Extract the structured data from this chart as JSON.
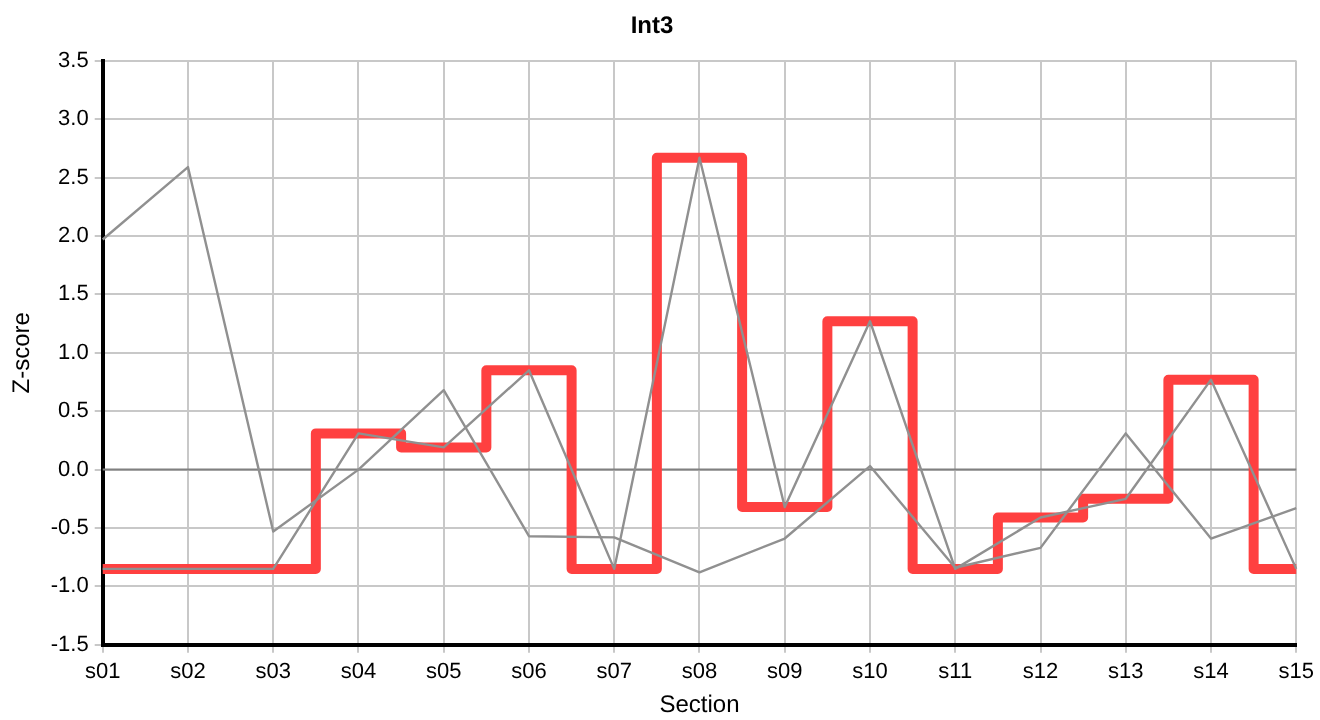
{
  "chart_data": {
    "type": "line",
    "title": "Int3",
    "xlabel": "Section",
    "ylabel": "Z-score",
    "categories": [
      "s01",
      "s02",
      "s03",
      "s04",
      "s05",
      "s06",
      "s07",
      "s08",
      "s09",
      "s10",
      "s11",
      "s12",
      "s13",
      "s14",
      "s15"
    ],
    "series": [
      {
        "type": "step",
        "color": "#ff4040",
        "values": [
          -0.85,
          -0.85,
          -0.85,
          0.31,
          0.19,
          0.85,
          -0.85,
          2.67,
          -0.32,
          1.27,
          -0.85,
          -0.41,
          -0.25,
          0.77,
          -0.85
        ]
      },
      {
        "color": "#909090",
        "values": [
          1.97,
          2.59,
          -0.53,
          0,
          0.68,
          -0.57,
          -0.58,
          -0.88,
          -0.59,
          0.03,
          -0.84,
          -0.67,
          0.31,
          -0.59,
          -0.33
        ]
      },
      {
        "color": "#909090",
        "values": [
          -0.85,
          -0.85,
          -0.85,
          0.31,
          0.19,
          0.85,
          -0.85,
          2.67,
          -0.32,
          1.27,
          -0.85,
          -0.41,
          -0.25,
          0.77,
          -0.85
        ]
      }
    ],
    "ylim": [
      -1.5,
      3.5
    ],
    "yticks": [
      {
        "value": -1.5,
        "label": "-1.5"
      },
      {
        "value": -1,
        "label": "-1.0"
      },
      {
        "value": -0.5,
        "label": "-0.5"
      },
      {
        "value": 0,
        "label": "0.0"
      },
      {
        "value": 0.5,
        "label": "0.5"
      },
      {
        "value": 1,
        "label": "1.0"
      },
      {
        "value": 1.5,
        "label": "1.5"
      },
      {
        "value": 2,
        "label": "2.0"
      },
      {
        "value": 2.5,
        "label": "2.5"
      },
      {
        "value": 3,
        "label": "3.0"
      },
      {
        "value": 3.5,
        "label": "3.5"
      }
    ],
    "ref_lines": [
      {
        "axis": "y",
        "value": 0,
        "color": "#808080"
      }
    ],
    "grid": true,
    "legend": false,
    "marker": "none",
    "line_style": "solid"
  }
}
